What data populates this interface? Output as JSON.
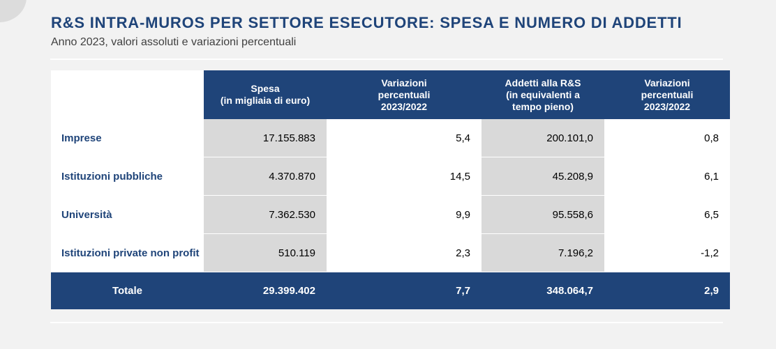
{
  "header": {
    "title": "R&S INTRA-MUROS PER SETTORE ESECUTORE: SPESA E NUMERO DI ADDETTI",
    "subtitle": "Anno 2023, valori assoluti e variazioni percentuali"
  },
  "table": {
    "columns": [
      "Spesa\n(in migliaia di euro)",
      "Variazioni\npercentuali\n2023/2022",
      "Addetti alla R&S\n(in equivalenti a\ntempo pieno)",
      "Variazioni\npercentuali\n2023/2022"
    ],
    "rows": [
      {
        "label": "Imprese",
        "spesa": "17.155.883",
        "var_spesa": "5,4",
        "addetti": "200.101,0",
        "var_addetti": "0,8"
      },
      {
        "label": "Istituzioni pubbliche",
        "spesa": "4.370.870",
        "var_spesa": "14,5",
        "addetti": "45.208,9",
        "var_addetti": "6,1"
      },
      {
        "label": "Università",
        "spesa": "7.362.530",
        "var_spesa": "9,9",
        "addetti": "95.558,6",
        "var_addetti": "6,5"
      },
      {
        "label": "Istituzioni private non profit",
        "spesa": "510.119",
        "var_spesa": "2,3",
        "addetti": "7.196,2",
        "var_addetti": "-1,2"
      }
    ],
    "total": {
      "label": "Totale",
      "spesa": "29.399.402",
      "var_spesa": "7,7",
      "addetti": "348.064,7",
      "var_addetti": "2,9"
    }
  },
  "colors": {
    "accent": "#1f4479",
    "shaded_cell": "#d9d9d9",
    "background": "#f2f2f2"
  }
}
